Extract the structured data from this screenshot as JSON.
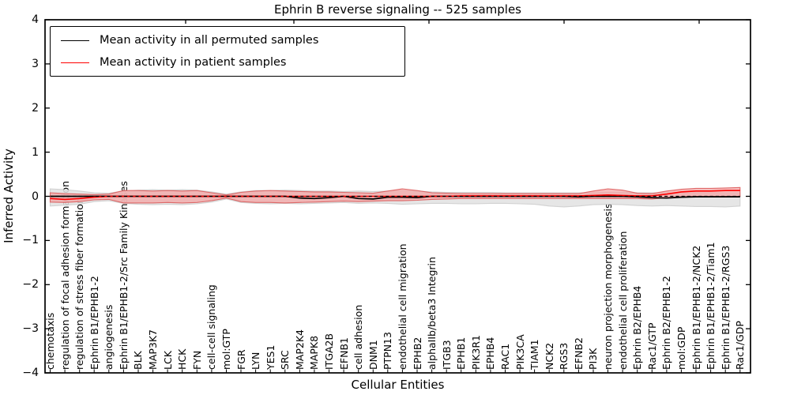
{
  "figure": {
    "title": "Ephrin B reverse signaling -- 525 samples",
    "xlabel": "Cellular Entities",
    "ylabel": "Inferred Activity"
  },
  "chart_data": {
    "type": "line",
    "title": "Ephrin B reverse signaling -- 525 samples",
    "xlabel": "Cellular Entities",
    "ylabel": "Inferred Activity",
    "ylim": [
      -4,
      4
    ],
    "yticks": [
      4,
      3,
      2,
      1,
      0,
      -1,
      -2,
      -3,
      -4
    ],
    "grid": false,
    "legend_position": "upper left",
    "categories": [
      "chemotaxis",
      "regulation of focal adhesion formation",
      "regulation of stress fiber formation",
      "Ephrin B1/EPHB1-2",
      "angiogenesis",
      "Ephrin B1/EPHB1-2/Src Family Kinases",
      "BLK",
      "MAP3K7",
      "LCK",
      "HCK",
      "FYN",
      "cell-cell signaling",
      "mol:GTP",
      "FGR",
      "LYN",
      "YES1",
      "SRC",
      "MAP2K4",
      "MAPK8",
      "ITGA2B",
      "EFNB1",
      "cell adhesion",
      "DNM1",
      "PTPN13",
      "endothelial cell migration",
      "EPHB2",
      "alphaIIb/beta3 Integrin",
      "ITGB3",
      "EPHB1",
      "PIK3R1",
      "EPHB4",
      "RAC1",
      "PIK3CA",
      "TIAM1",
      "NCK2",
      "RGS3",
      "EFNB2",
      "PI3K",
      "neuron projection morphogenesis",
      "endothelial cell proliferation",
      "Ephrin B2/EPHB4",
      "Rac1/GTP",
      "Ephrin B2/EPHB1-2",
      "mol:GDP",
      "Ephrin B1/EPHB1-2/NCK2",
      "Ephrin B1/EPHB1-2/Tiam1",
      "Ephrin B1/EPHB1-2/RGS3",
      "Rac1/GDP"
    ],
    "series": [
      {
        "name": "Mean activity in all permuted samples",
        "color": "#000000",
        "style": "solid",
        "values": [
          0,
          0,
          0,
          0,
          0,
          0,
          0,
          0,
          0,
          0,
          0,
          0,
          0,
          0,
          0,
          0,
          0,
          -0.04,
          -0.05,
          -0.03,
          0,
          -0.05,
          -0.06,
          -0.02,
          -0.02,
          -0.03,
          0,
          0,
          0,
          0,
          0,
          0,
          0,
          0,
          0,
          0,
          -0.01,
          0,
          0,
          0,
          -0.01,
          -0.03,
          -0.04,
          -0.02,
          -0.01,
          -0.01,
          -0.01,
          -0.01
        ]
      },
      {
        "name": "Mean activity in patient samples",
        "color": "#ff0000",
        "style": "solid",
        "values": [
          -0.05,
          -0.07,
          -0.05,
          -0.02,
          0,
          0,
          0,
          0,
          0,
          0,
          0,
          0,
          0,
          0,
          0,
          0,
          0,
          0,
          0,
          0,
          0,
          0,
          0,
          0,
          0,
          0,
          0,
          0,
          0.01,
          0.01,
          0.01,
          0.01,
          0.01,
          0.01,
          0.01,
          0.01,
          0.01,
          0.02,
          0.03,
          0.02,
          0.01,
          0.01,
          0.05,
          0.1,
          0.12,
          0.12,
          0.13,
          0.13
        ]
      }
    ],
    "bands": [
      {
        "name": "permuted samples range",
        "fill": "#e2e2e2",
        "edge": "#c9c9c9",
        "upper": [
          0.17,
          0.15,
          0.12,
          0.08,
          0.07,
          0.12,
          0.14,
          0.15,
          0.14,
          0.15,
          0.14,
          0.1,
          0.05,
          0.1,
          0.13,
          0.13,
          0.14,
          0.13,
          0.12,
          0.12,
          0.11,
          0.12,
          0.11,
          0.12,
          0.13,
          0.12,
          0.1,
          0.09,
          0.09,
          0.09,
          0.09,
          0.08,
          0.08,
          0.08,
          0.08,
          0.08,
          0.08,
          0.08,
          0.09,
          0.09,
          0.08,
          0.08,
          0.08,
          0.08,
          0.08,
          0.08,
          0.08,
          0.08
        ],
        "lower": [
          -0.22,
          -0.2,
          -0.18,
          -0.12,
          -0.1,
          -0.16,
          -0.18,
          -0.19,
          -0.18,
          -0.19,
          -0.17,
          -0.13,
          -0.06,
          -0.14,
          -0.16,
          -0.17,
          -0.16,
          -0.17,
          -0.16,
          -0.15,
          -0.14,
          -0.16,
          -0.15,
          -0.16,
          -0.18,
          -0.17,
          -0.16,
          -0.16,
          -0.17,
          -0.17,
          -0.16,
          -0.16,
          -0.17,
          -0.18,
          -0.22,
          -0.24,
          -0.22,
          -0.19,
          -0.18,
          -0.19,
          -0.21,
          -0.22,
          -0.21,
          -0.22,
          -0.23,
          -0.23,
          -0.24,
          -0.22
        ]
      },
      {
        "name": "patient samples range",
        "fill": "#f4a4a4",
        "edge": "#d94f4f",
        "upper": [
          0.08,
          0.06,
          0.05,
          0.04,
          0.05,
          0.13,
          0.13,
          0.12,
          0.13,
          0.12,
          0.13,
          0.08,
          0.03,
          0.09,
          0.12,
          0.13,
          0.12,
          0.11,
          0.1,
          0.1,
          0.09,
          0.08,
          0.07,
          0.12,
          0.17,
          0.13,
          0.08,
          0.07,
          0.06,
          0.06,
          0.06,
          0.06,
          0.06,
          0.06,
          0.06,
          0.06,
          0.06,
          0.12,
          0.17,
          0.14,
          0.07,
          0.06,
          0.12,
          0.16,
          0.18,
          0.18,
          0.19,
          0.2
        ],
        "lower": [
          -0.13,
          -0.14,
          -0.12,
          -0.08,
          -0.07,
          -0.15,
          -0.15,
          -0.15,
          -0.14,
          -0.15,
          -0.14,
          -0.1,
          -0.04,
          -0.12,
          -0.14,
          -0.14,
          -0.15,
          -0.14,
          -0.13,
          -0.12,
          -0.11,
          -0.12,
          -0.11,
          -0.1,
          -0.1,
          -0.09,
          -0.07,
          -0.06,
          -0.05,
          -0.05,
          -0.05,
          -0.05,
          -0.05,
          -0.05,
          -0.05,
          -0.05,
          -0.05,
          -0.05,
          -0.05,
          -0.05,
          -0.05,
          -0.06,
          -0.03,
          -0.01,
          0.0,
          0.0,
          0.0,
          0.0
        ]
      }
    ],
    "reference_line": {
      "name": "zero reference",
      "value": 0,
      "color": "#000000",
      "style": "dashed"
    }
  }
}
